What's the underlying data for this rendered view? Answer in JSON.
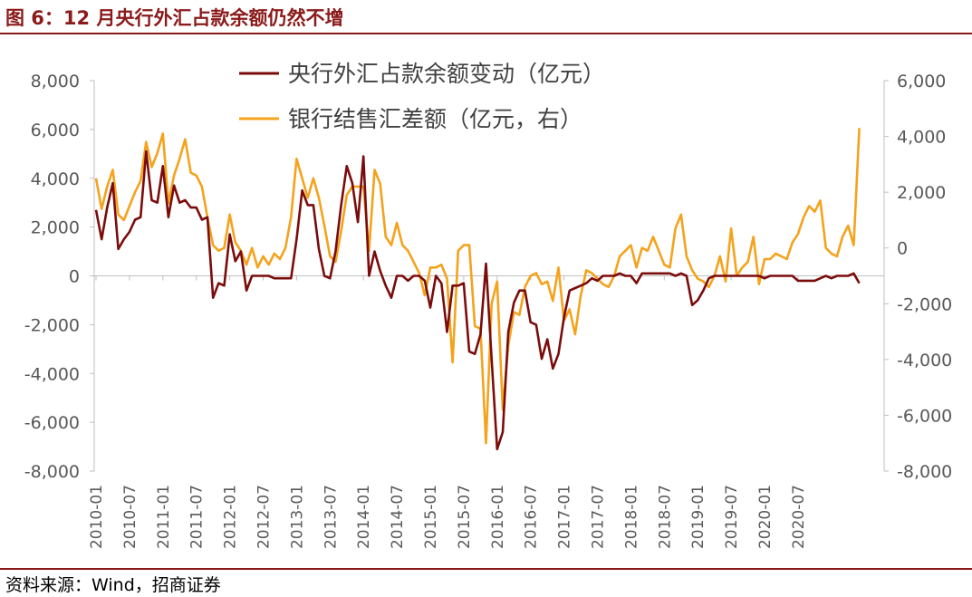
{
  "title": "图 6：12 月央行外汇占款余额仍然不增",
  "source": "资料来源：Wind，招商证券",
  "colors": {
    "accent": "#8B1A1A",
    "series_left": "#7B0C0C",
    "series_right": "#F5A21C",
    "axis": "#BFBFBF",
    "tick_text": "#595959"
  },
  "chart_data": {
    "type": "line",
    "start_month": "2010-01",
    "x_ticks": [
      "2010-01",
      "2010-07",
      "2011-01",
      "2011-07",
      "2012-01",
      "2012-07",
      "2013-01",
      "2013-07",
      "2014-01",
      "2014-07",
      "2015-01",
      "2015-07",
      "2016-01",
      "2016-07",
      "2017-01",
      "2017-07",
      "2018-01",
      "2018-07",
      "2019-01",
      "2019-07",
      "2020-01",
      "2020-07"
    ],
    "y_left": {
      "min": -8000,
      "max": 8000,
      "ticks": [
        "-8,000",
        "-6,000",
        "-4,000",
        "-2,000",
        "0",
        "2,000",
        "4,000",
        "6,000",
        "8,000"
      ]
    },
    "y_right": {
      "min": -8000,
      "max": 6000,
      "ticks": [
        "-8,000",
        "-6,000",
        "-4,000",
        "-2,000",
        "0",
        "2,000",
        "4,000",
        "6,000"
      ]
    },
    "legend_position": "top-center",
    "series": [
      {
        "name": "央行外汇占款余额变动（亿元）",
        "axis": "left",
        "values": [
          2700,
          1500,
          2800,
          3800,
          1100,
          1500,
          1800,
          2300,
          2400,
          5100,
          3100,
          3000,
          4500,
          2400,
          3700,
          3000,
          3100,
          2800,
          2800,
          2300,
          2400,
          -900,
          -300,
          -400,
          1700,
          600,
          1000,
          -600,
          0,
          0,
          0,
          0,
          -100,
          -100,
          -100,
          -100,
          1500,
          3500,
          2900,
          2900,
          1100,
          0,
          -100,
          1000,
          2900,
          4500,
          3800,
          2200,
          4900,
          0,
          1000,
          200,
          -400,
          -900,
          0,
          0,
          -200,
          0,
          0,
          -200,
          -1300,
          0,
          -300,
          -2300,
          -400,
          -400,
          -300,
          -3100,
          -3200,
          -2400,
          500,
          -3400,
          -7100,
          -6400,
          -2300,
          -1100,
          -600,
          -600,
          -1900,
          -2000,
          -3400,
          -2600,
          -3800,
          -3200,
          -1700,
          -600,
          -500,
          -400,
          -300,
          -100,
          -200,
          0,
          0,
          0,
          100,
          0,
          0,
          -300,
          100,
          100,
          100,
          100,
          100,
          100,
          0,
          100,
          0,
          -1200,
          -1000,
          -600,
          -100,
          0,
          0,
          0,
          0,
          0,
          0,
          0,
          0,
          0,
          -100,
          0,
          0,
          0,
          0,
          0,
          -200,
          -200,
          -200,
          -200,
          -100,
          0,
          -100,
          0,
          0,
          0,
          100,
          -300
        ]
      },
      {
        "name": "银行结售汇差额（亿元，右）",
        "axis": "right",
        "values": [
          2500,
          1400,
          2200,
          2800,
          1200,
          1000,
          1500,
          2000,
          2400,
          3800,
          2900,
          3400,
          4100,
          1600,
          2600,
          3200,
          3900,
          2700,
          2600,
          2200,
          1100,
          100,
          -100,
          0,
          1200,
          200,
          -100,
          -600,
          0,
          -700,
          -300,
          -600,
          -200,
          -400,
          0,
          1100,
          3200,
          2500,
          1800,
          2500,
          1800,
          800,
          -300,
          -500,
          600,
          1900,
          2200,
          2200,
          2200,
          -100,
          2800,
          2300,
          400,
          100,
          900,
          100,
          -100,
          -500,
          -900,
          -1700,
          -700,
          -700,
          -600,
          -1100,
          -4100,
          -100,
          100,
          100,
          -2800,
          -2900,
          -7000,
          -2000,
          -1200,
          -5800,
          -3500,
          -2300,
          -2400,
          -1400,
          -1000,
          -900,
          -1300,
          -1200,
          -1900,
          -700,
          -2600,
          -2200,
          -3100,
          -1700,
          -800,
          -900,
          -1100,
          -1300,
          -1400,
          -1000,
          -300,
          -100,
          100,
          -700,
          0,
          -100,
          400,
          -100,
          -600,
          -700,
          700,
          1200,
          -300,
          -800,
          -1100,
          -1200,
          -1400,
          -1000,
          -300,
          -1200,
          700,
          -1000,
          -700,
          -500,
          400,
          -1300,
          -400,
          -400,
          -200,
          -300,
          -400,
          200,
          500,
          1100,
          1500,
          1300,
          1700,
          0,
          -200,
          -300,
          400,
          800,
          100,
          4300
        ]
      }
    ]
  }
}
